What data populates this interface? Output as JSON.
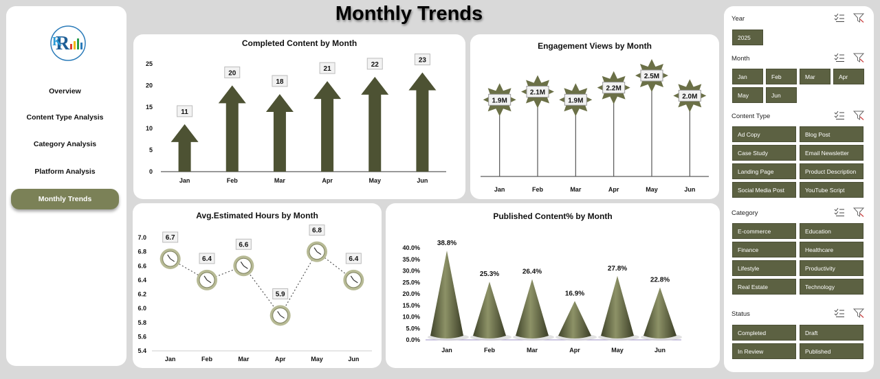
{
  "title": "Monthly Trends",
  "nav": {
    "items": [
      {
        "label": "Overview",
        "active": false
      },
      {
        "label": "Content Type Analysis",
        "active": false
      },
      {
        "label": "Category Analysis",
        "active": false
      },
      {
        "label": "Platform Analysis",
        "active": false
      },
      {
        "label": "Monthly Trends",
        "active": true
      }
    ]
  },
  "colors": {
    "accent": "#5c6142",
    "active_nav": "#7b8157",
    "clock": "#b7ba95"
  },
  "chart_data": [
    {
      "type": "bar",
      "title": "Completed Content by Month",
      "categories": [
        "Jan",
        "Feb",
        "Mar",
        "Apr",
        "May",
        "Jun"
      ],
      "values": [
        11,
        20,
        18,
        21,
        22,
        23
      ],
      "ylim": [
        0,
        25
      ],
      "yticks": [
        "0",
        "5",
        "10",
        "15",
        "20",
        "25"
      ],
      "data_labels": [
        "11",
        "20",
        "18",
        "21",
        "22",
        "23"
      ]
    },
    {
      "type": "bar",
      "title": "Engagement Views by Month",
      "categories": [
        "Jan",
        "Feb",
        "Mar",
        "Apr",
        "May",
        "Jun"
      ],
      "values": [
        1.9,
        2.1,
        1.9,
        2.2,
        2.5,
        2.0
      ],
      "data_labels": [
        "1.9M",
        "2.1M",
        "1.9M",
        "2.2M",
        "2.5M",
        "2.0M"
      ]
    },
    {
      "type": "line",
      "title": "Avg.Estimated Hours by Month",
      "categories": [
        "Jan",
        "Feb",
        "Mar",
        "Apr",
        "May",
        "Jun"
      ],
      "values": [
        6.7,
        6.4,
        6.6,
        5.9,
        6.8,
        6.4
      ],
      "ylim": [
        5.4,
        7.0
      ],
      "yticks": [
        "7.0",
        "6.8",
        "6.6",
        "6.4",
        "6.2",
        "6.0",
        "5.8",
        "5.6",
        "5.4"
      ],
      "data_labels": [
        "6.7",
        "6.4",
        "6.6",
        "5.9",
        "6.8",
        "6.4"
      ]
    },
    {
      "type": "bar",
      "title": "Published Content% by Month",
      "categories": [
        "Jan",
        "Feb",
        "Mar",
        "Apr",
        "May",
        "Jun"
      ],
      "values": [
        38.8,
        25.3,
        26.4,
        16.9,
        27.8,
        22.8
      ],
      "ylim": [
        0,
        40
      ],
      "yticks": [
        "40.0%",
        "35.0%",
        "30.0%",
        "25.0%",
        "20.0%",
        "15.0%",
        "10.0%",
        "5.0%",
        "0.0%"
      ],
      "data_labels": [
        "38.8%",
        "25.3%",
        "26.4%",
        "16.9%",
        "27.8%",
        "22.8%"
      ]
    }
  ],
  "filters": [
    {
      "title": "Year",
      "options": [
        "2025"
      ]
    },
    {
      "title": "Month",
      "options": [
        "Jan",
        "Feb",
        "Mar",
        "Apr",
        "May",
        "Jun"
      ]
    },
    {
      "title": "Content Type",
      "options": [
        "Ad Copy",
        "Blog Post",
        "Case Study",
        "Email Newsletter",
        "Landing Page",
        "Product Description",
        "Social Media Post",
        "YouTube Script"
      ]
    },
    {
      "title": "Category",
      "options": [
        "E-commerce",
        "Education",
        "Finance",
        "Healthcare",
        "Lifestyle",
        "Productivity",
        "Real Estate",
        "Technology"
      ]
    },
    {
      "title": "Status",
      "options": [
        "Completed",
        "Draft",
        "In Review",
        "Published"
      ]
    }
  ]
}
